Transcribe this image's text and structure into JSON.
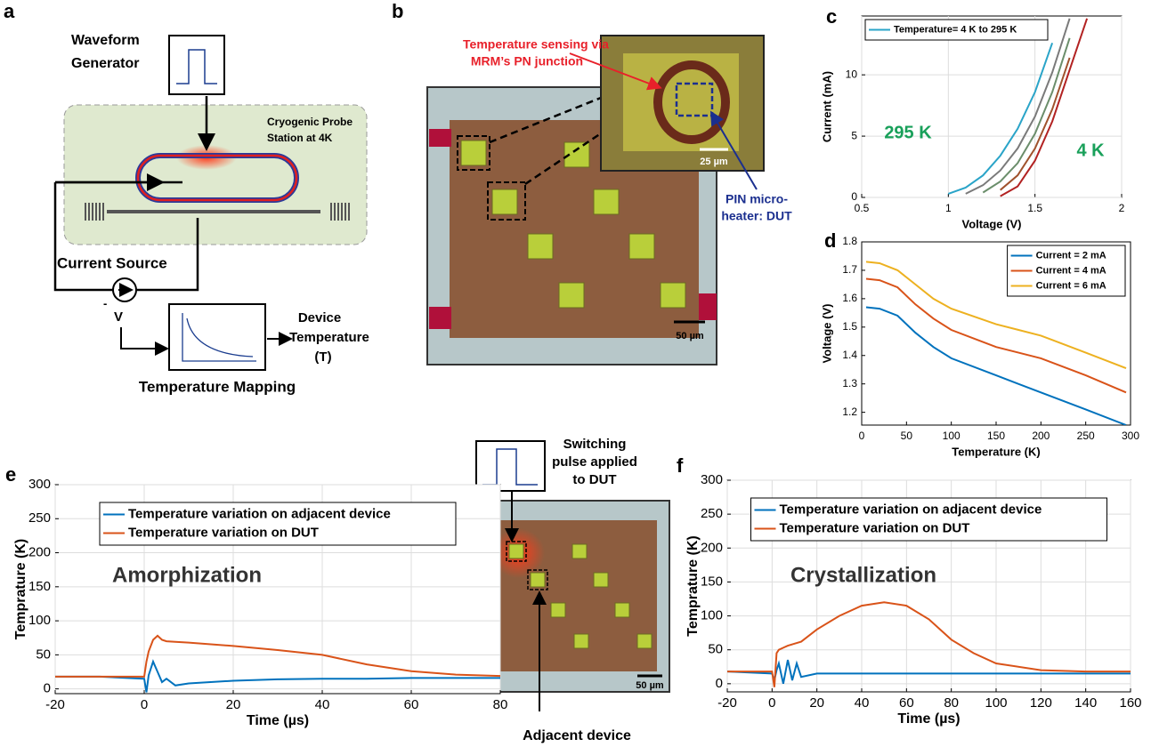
{
  "panel_labels": [
    "a",
    "b",
    "c",
    "d",
    "e",
    "f"
  ],
  "diagram_a": {
    "waveform_generator": [
      "Waveform",
      "Generator"
    ],
    "probe_station": [
      "Cryogenic Probe",
      "Station at 4K"
    ],
    "current_source": "Current Source",
    "minus": "-",
    "voltage": "V",
    "device_temperature": [
      "Device",
      "Temperature",
      "(T)"
    ],
    "temperature_mapping": "Temperature Mapping"
  },
  "photo_b": {
    "sensing": [
      "Temperature sensing via",
      "MRM’s PN junction"
    ],
    "dut": [
      "PIN micro-",
      "heater: DUT"
    ],
    "scale_inset": "25 µm",
    "scale_chip": "50 µm"
  },
  "photo_e": {
    "pulse": [
      "Switching",
      "pulse applied",
      "to DUT"
    ],
    "adjacent": "Adjacent device",
    "scale": "50 µm"
  },
  "chart_data": [
    {
      "type": "line",
      "xlabel": "Voltage (V)",
      "ylabel": "Current (mA)",
      "xlim": [
        0.5,
        2
      ],
      "xticks": [
        0.5,
        1,
        1.5,
        2
      ],
      "ylim": [
        0,
        14.8
      ],
      "yticks": [
        0,
        5,
        10
      ],
      "grid": true,
      "legend": "upper left",
      "annotations": [
        "295 K",
        "4 K"
      ],
      "x": [
        0.9,
        1.0,
        1.1,
        1.2,
        1.3,
        1.4,
        1.5,
        1.6,
        1.7,
        1.8
      ],
      "series": [
        {
          "name": "Temperature= 4 K to 295 K",
          "color": "#2aa4c8",
          "values": [
            null,
            0.3,
            0.8,
            1.8,
            3.4,
            5.6,
            8.6,
            12.6,
            null,
            null
          ]
        },
        {
          "color": "#7a7a7a",
          "values": [
            null,
            null,
            0.3,
            1.0,
            2.2,
            4.0,
            6.6,
            10.2,
            14.6,
            null
          ]
        },
        {
          "color": "#6b8e6b",
          "values": [
            null,
            null,
            null,
            0.4,
            1.3,
            2.8,
            5.2,
            8.6,
            13.0,
            null
          ]
        },
        {
          "color": "#a0522d",
          "values": [
            null,
            null,
            null,
            null,
            0.6,
            1.8,
            4.0,
            7.2,
            11.4,
            null
          ]
        },
        {
          "color": "#b22222",
          "values": [
            null,
            null,
            null,
            null,
            0.1,
            0.9,
            3.0,
            6.2,
            10.4,
            14.6
          ]
        }
      ]
    },
    {
      "type": "line",
      "xlabel": "Temperature (K)",
      "ylabel": "Voltage (V)",
      "xlim": [
        0,
        300
      ],
      "xticks": [
        0,
        50,
        100,
        150,
        200,
        250,
        300
      ],
      "ylim": [
        1.155,
        1.8
      ],
      "yticks": [
        1.2,
        1.3,
        1.4,
        1.5,
        1.6,
        1.7,
        1.8
      ],
      "grid": false,
      "legend": "upper right",
      "x": [
        5,
        20,
        40,
        60,
        80,
        100,
        150,
        200,
        250,
        295
      ],
      "series": [
        {
          "name": "Current = 2 mA",
          "color": "#0072bd",
          "values": [
            1.57,
            1.565,
            1.54,
            1.48,
            1.43,
            1.39,
            1.33,
            1.27,
            1.21,
            1.155
          ]
        },
        {
          "name": "Current = 4 mA",
          "color": "#d95319",
          "values": [
            1.67,
            1.665,
            1.64,
            1.58,
            1.53,
            1.49,
            1.43,
            1.39,
            1.33,
            1.27
          ]
        },
        {
          "name": "Current = 6 mA",
          "color": "#edb120",
          "values": [
            1.73,
            1.725,
            1.7,
            1.65,
            1.6,
            1.565,
            1.51,
            1.47,
            1.41,
            1.355
          ]
        }
      ]
    },
    {
      "type": "line",
      "xlabel": "Time (µs)",
      "ylabel": "Temprature (K)",
      "xlim": [
        -20,
        80
      ],
      "xticks": [
        -20,
        0,
        20,
        40,
        60,
        80
      ],
      "ylim": [
        -7,
        300
      ],
      "yticks": [
        0,
        50,
        100,
        150,
        200,
        250,
        300
      ],
      "grid": true,
      "legend": "upper center",
      "annotations": [
        "Amorphization"
      ],
      "x": [
        -20,
        -10,
        0,
        0.5,
        1,
        2,
        3,
        4,
        5,
        7,
        10,
        20,
        30,
        40,
        50,
        60,
        70,
        80
      ],
      "series": [
        {
          "name": "Temperature variation on adjacent device",
          "color": "#0072bd",
          "values": [
            18,
            18,
            15,
            -5,
            20,
            40,
            25,
            10,
            15,
            5,
            8,
            12,
            14,
            15,
            15,
            16,
            16,
            16
          ]
        },
        {
          "name": "Temperature variation on DUT",
          "color": "#d95319",
          "values": [
            18,
            18,
            18,
            40,
            55,
            72,
            78,
            72,
            70,
            69,
            68,
            63,
            57,
            50,
            36,
            26,
            21,
            19
          ]
        }
      ]
    },
    {
      "type": "line",
      "xlabel": "Time (µs)",
      "ylabel": "Temprature (K)",
      "xlim": [
        -20,
        160
      ],
      "xticks": [
        -20,
        0,
        20,
        40,
        60,
        80,
        100,
        120,
        140,
        160
      ],
      "ylim": [
        -12,
        300
      ],
      "yticks": [
        0,
        50,
        100,
        150,
        200,
        250,
        300
      ],
      "grid": true,
      "legend": "upper center",
      "annotations": [
        "Crystallization"
      ],
      "x": [
        -20,
        0,
        1,
        2,
        3,
        5,
        7,
        9,
        11,
        13,
        20,
        30,
        40,
        50,
        60,
        70,
        80,
        90,
        100,
        120,
        140,
        160
      ],
      "series": [
        {
          "name": "Temperature variation on adjacent device",
          "color": "#0072bd",
          "values": [
            18,
            15,
            5,
            20,
            30,
            0,
            35,
            5,
            30,
            10,
            15,
            15,
            15,
            15,
            15,
            15,
            15,
            15,
            15,
            15,
            15,
            15
          ]
        },
        {
          "name": "Temperature variation on DUT",
          "color": "#d95319",
          "values": [
            18,
            18,
            -5,
            45,
            50,
            53,
            56,
            58,
            60,
            62,
            80,
            100,
            115,
            120,
            115,
            95,
            65,
            45,
            30,
            20,
            18,
            18
          ]
        }
      ]
    }
  ]
}
